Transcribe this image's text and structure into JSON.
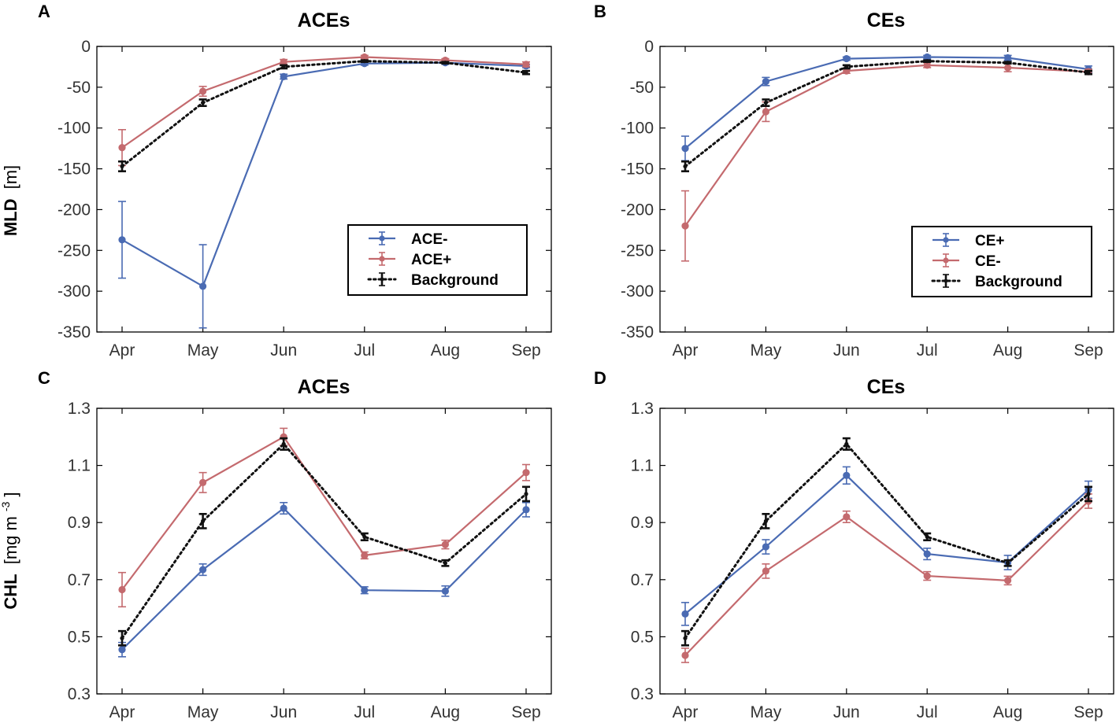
{
  "figure": {
    "x_categories": [
      "Apr",
      "May",
      "Jun",
      "Jul",
      "Aug",
      "Sep"
    ],
    "row_labels": {
      "mld_main": "MLD",
      "mld_unit": "[m]",
      "chl_main": "CHL",
      "chl_unit_prefix": "[mg m",
      "chl_unit_sup": "-3",
      "chl_unit_suffix": "]"
    }
  },
  "colors": {
    "blue": "#4a6bb3",
    "red": "#c46a6e",
    "black": "#111111"
  },
  "chart_data": [
    {
      "id": "A",
      "type": "line",
      "panel_letter": "A",
      "title": "ACEs",
      "ylabel": "MLD [m]",
      "categories": [
        "Apr",
        "May",
        "Jun",
        "Jul",
        "Aug",
        "Sep"
      ],
      "ylim": [
        -350,
        0
      ],
      "yticks": [
        0,
        -50,
        -100,
        -150,
        -200,
        -250,
        -300,
        -350
      ],
      "ytick_labels": [
        "0",
        "-50",
        "-100",
        "-150",
        "-200",
        "-250",
        "-300",
        "-350"
      ],
      "legend_position": "center-right",
      "series": [
        {
          "name": "ACE-",
          "color": "blue",
          "style": "solid",
          "values": [
            -237,
            -294,
            -37,
            -21,
            -20,
            -24
          ],
          "errors": [
            47,
            51,
            3,
            2,
            2,
            2
          ]
        },
        {
          "name": "ACE+",
          "color": "red",
          "style": "solid",
          "values": [
            -124,
            -55,
            -19,
            -13,
            -17,
            -22
          ],
          "errors": [
            22,
            6,
            3,
            2,
            2,
            3
          ]
        },
        {
          "name": "Background",
          "color": "black",
          "style": "dotted",
          "values": [
            -147,
            -69,
            -25,
            -18,
            -20,
            -32
          ],
          "errors": [
            6,
            4,
            2,
            1,
            1,
            2
          ]
        }
      ]
    },
    {
      "id": "B",
      "type": "line",
      "panel_letter": "B",
      "title": "CEs",
      "ylabel": "",
      "categories": [
        "Apr",
        "May",
        "Jun",
        "Jul",
        "Aug",
        "Sep"
      ],
      "ylim": [
        -350,
        0
      ],
      "yticks": [
        0,
        -50,
        -100,
        -150,
        -200,
        -250,
        -300,
        -350
      ],
      "ytick_labels": [
        "0",
        "-50",
        "-100",
        "-150",
        "-200",
        "-250",
        "-300",
        "-350"
      ],
      "legend_position": "center-right",
      "series": [
        {
          "name": "CE+",
          "color": "blue",
          "style": "solid",
          "values": [
            -125,
            -43,
            -15,
            -13,
            -14,
            -28
          ],
          "errors": [
            15,
            5,
            2,
            2,
            3,
            4
          ]
        },
        {
          "name": "CE-",
          "color": "red",
          "style": "solid",
          "values": [
            -220,
            -80,
            -30,
            -23,
            -26,
            -31
          ],
          "errors": [
            43,
            12,
            3,
            3,
            5,
            3
          ]
        },
        {
          "name": "Background",
          "color": "black",
          "style": "dotted",
          "values": [
            -147,
            -69,
            -25,
            -18,
            -20,
            -32
          ],
          "errors": [
            6,
            4,
            2,
            1,
            1,
            2
          ]
        }
      ]
    },
    {
      "id": "C",
      "type": "line",
      "panel_letter": "C",
      "title": "ACEs",
      "ylabel": "CHL [mg m-3]",
      "categories": [
        "Apr",
        "May",
        "Jun",
        "Jul",
        "Aug",
        "Sep"
      ],
      "ylim": [
        0.3,
        1.3
      ],
      "yticks": [
        1.3,
        1.1,
        0.9,
        0.7,
        0.5,
        0.3
      ],
      "ytick_labels": [
        "1.3",
        "1.1",
        "0.9",
        "0.7",
        "0.5",
        "0.3"
      ],
      "legend_position": "none",
      "series": [
        {
          "name": "ACE-",
          "color": "blue",
          "style": "solid",
          "values": [
            0.455,
            0.735,
            0.95,
            0.663,
            0.66,
            0.945
          ],
          "errors": [
            0.025,
            0.02,
            0.02,
            0.012,
            0.018,
            0.025
          ]
        },
        {
          "name": "ACE+",
          "color": "red",
          "style": "solid",
          "values": [
            0.665,
            1.04,
            1.2,
            0.785,
            0.823,
            1.075
          ],
          "errors": [
            0.06,
            0.035,
            0.03,
            0.012,
            0.015,
            0.028
          ]
        },
        {
          "name": "Background",
          "color": "black",
          "style": "dotted",
          "values": [
            0.495,
            0.905,
            1.175,
            0.85,
            0.758,
            1.0
          ],
          "errors": [
            0.025,
            0.025,
            0.02,
            0.012,
            0.01,
            0.025
          ]
        }
      ]
    },
    {
      "id": "D",
      "type": "line",
      "panel_letter": "D",
      "title": "CEs",
      "ylabel": "",
      "categories": [
        "Apr",
        "May",
        "Jun",
        "Jul",
        "Aug",
        "Sep"
      ],
      "ylim": [
        0.3,
        1.3
      ],
      "yticks": [
        1.3,
        1.1,
        0.9,
        0.7,
        0.5,
        0.3
      ],
      "ytick_labels": [
        "1.3",
        "1.1",
        "0.9",
        "0.7",
        "0.5",
        "0.3"
      ],
      "legend_position": "none",
      "series": [
        {
          "name": "CE+",
          "color": "blue",
          "style": "solid",
          "values": [
            0.58,
            0.815,
            1.065,
            0.79,
            0.76,
            1.015
          ],
          "errors": [
            0.04,
            0.025,
            0.03,
            0.02,
            0.025,
            0.03
          ]
        },
        {
          "name": "CE-",
          "color": "red",
          "style": "solid",
          "values": [
            0.435,
            0.73,
            0.92,
            0.713,
            0.697,
            0.975
          ],
          "errors": [
            0.025,
            0.025,
            0.02,
            0.015,
            0.015,
            0.025
          ]
        },
        {
          "name": "Background",
          "color": "black",
          "style": "dotted",
          "values": [
            0.495,
            0.905,
            1.175,
            0.85,
            0.758,
            1.0
          ],
          "errors": [
            0.025,
            0.025,
            0.02,
            0.012,
            0.01,
            0.025
          ]
        }
      ]
    }
  ]
}
